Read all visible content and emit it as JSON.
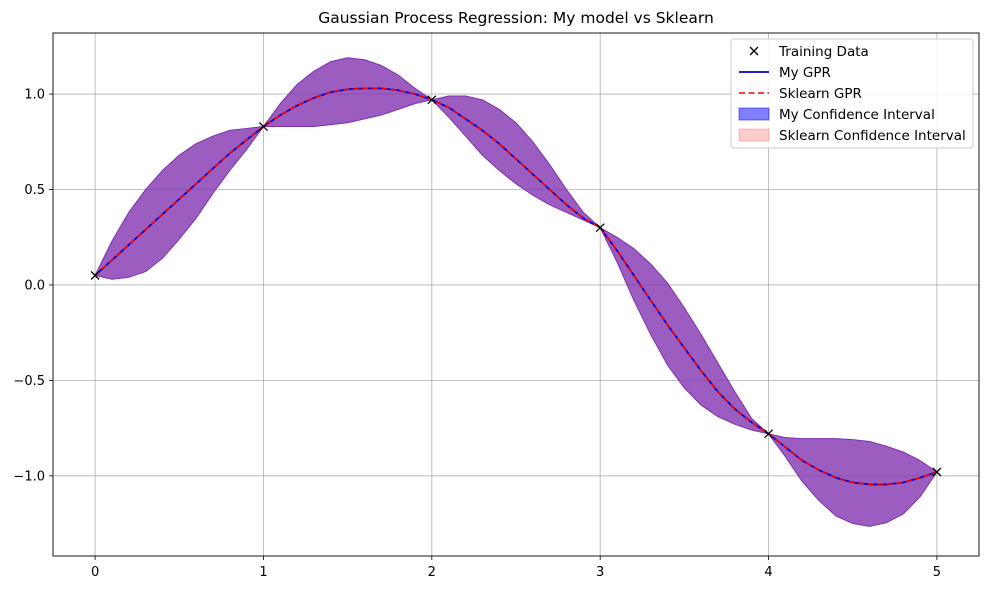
{
  "chart_data": {
    "type": "line",
    "title": "Gaussian Process Regression: My model vs Sklearn",
    "xlabel": "",
    "ylabel": "",
    "xlim": [
      -0.25,
      5.25
    ],
    "ylim": [
      -1.42,
      1.32
    ],
    "xticks": [
      0,
      1,
      2,
      3,
      4,
      5
    ],
    "xtick_labels": [
      "0",
      "1",
      "2",
      "3",
      "4",
      "5"
    ],
    "yticks": [
      -1.0,
      -0.5,
      0.0,
      0.5,
      1.0
    ],
    "ytick_labels": [
      "−1.0",
      "−0.5",
      "0.0",
      "0.5",
      "1.0"
    ],
    "grid": true,
    "legend_position": "top-right",
    "legend": [
      {
        "label": "Training Data",
        "kind": "marker-x",
        "color": "#000000"
      },
      {
        "label": "My GPR",
        "kind": "line",
        "color": "#0000cc"
      },
      {
        "label": "Sklearn GPR",
        "kind": "dashed",
        "color": "#ff0000"
      },
      {
        "label": "My Confidence Interval",
        "kind": "patch",
        "color": "#0000ff"
      },
      {
        "label": "Sklearn Confidence Interval",
        "kind": "patch",
        "color": "#ff0000"
      }
    ],
    "training_data": {
      "x": [
        0,
        1,
        2,
        3,
        4,
        5
      ],
      "y": [
        0.05,
        0.83,
        0.97,
        0.3,
        -0.78,
        -0.98
      ]
    },
    "series": [
      {
        "name": "My GPR",
        "x": [
          0,
          0.1,
          0.2,
          0.3,
          0.4,
          0.5,
          0.6,
          0.7,
          0.8,
          0.9,
          1.0,
          1.1,
          1.2,
          1.3,
          1.4,
          1.5,
          1.6,
          1.7,
          1.8,
          1.9,
          2.0,
          2.1,
          2.2,
          2.3,
          2.4,
          2.5,
          2.6,
          2.7,
          2.8,
          2.9,
          3.0,
          3.1,
          3.2,
          3.3,
          3.4,
          3.5,
          3.6,
          3.7,
          3.8,
          3.9,
          4.0,
          4.1,
          4.2,
          4.3,
          4.4,
          4.5,
          4.6,
          4.7,
          4.8,
          4.9,
          5.0
        ],
        "y": [
          0.05,
          0.13,
          0.21,
          0.29,
          0.37,
          0.45,
          0.53,
          0.61,
          0.69,
          0.76,
          0.83,
          0.89,
          0.94,
          0.98,
          1.01,
          1.025,
          1.03,
          1.03,
          1.02,
          1.0,
          0.97,
          0.93,
          0.87,
          0.81,
          0.74,
          0.66,
          0.58,
          0.5,
          0.42,
          0.35,
          0.3,
          0.18,
          0.05,
          -0.08,
          -0.21,
          -0.33,
          -0.45,
          -0.56,
          -0.65,
          -0.72,
          -0.78,
          -0.85,
          -0.92,
          -0.97,
          -1.01,
          -1.035,
          -1.045,
          -1.045,
          -1.035,
          -1.01,
          -0.98
        ]
      },
      {
        "name": "Sklearn GPR",
        "x": [
          0,
          0.1,
          0.2,
          0.3,
          0.4,
          0.5,
          0.6,
          0.7,
          0.8,
          0.9,
          1.0,
          1.1,
          1.2,
          1.3,
          1.4,
          1.5,
          1.6,
          1.7,
          1.8,
          1.9,
          2.0,
          2.1,
          2.2,
          2.3,
          2.4,
          2.5,
          2.6,
          2.7,
          2.8,
          2.9,
          3.0,
          3.1,
          3.2,
          3.3,
          3.4,
          3.5,
          3.6,
          3.7,
          3.8,
          3.9,
          4.0,
          4.1,
          4.2,
          4.3,
          4.4,
          4.5,
          4.6,
          4.7,
          4.8,
          4.9,
          5.0
        ],
        "y": [
          0.05,
          0.13,
          0.21,
          0.29,
          0.37,
          0.45,
          0.53,
          0.61,
          0.69,
          0.76,
          0.83,
          0.89,
          0.94,
          0.98,
          1.01,
          1.025,
          1.03,
          1.03,
          1.02,
          1.0,
          0.97,
          0.93,
          0.87,
          0.81,
          0.74,
          0.66,
          0.58,
          0.5,
          0.42,
          0.35,
          0.3,
          0.18,
          0.05,
          -0.08,
          -0.21,
          -0.33,
          -0.45,
          -0.56,
          -0.65,
          -0.72,
          -0.78,
          -0.85,
          -0.92,
          -0.97,
          -1.01,
          -1.035,
          -1.045,
          -1.045,
          -1.035,
          -1.01,
          -0.98
        ]
      }
    ],
    "confidence_band": {
      "x": [
        0,
        0.1,
        0.2,
        0.3,
        0.4,
        0.5,
        0.6,
        0.7,
        0.8,
        0.9,
        1.0,
        1.1,
        1.2,
        1.3,
        1.4,
        1.5,
        1.6,
        1.7,
        1.8,
        1.9,
        2.0,
        2.1,
        2.2,
        2.3,
        2.4,
        2.5,
        2.6,
        2.7,
        2.8,
        2.9,
        3.0,
        3.1,
        3.2,
        3.3,
        3.4,
        3.5,
        3.6,
        3.7,
        3.8,
        3.9,
        4.0,
        4.1,
        4.2,
        4.3,
        4.4,
        4.5,
        4.6,
        4.7,
        4.8,
        4.9,
        5.0
      ],
      "upper": [
        0.05,
        0.23,
        0.38,
        0.5,
        0.6,
        0.68,
        0.74,
        0.78,
        0.81,
        0.82,
        0.83,
        0.95,
        1.05,
        1.12,
        1.17,
        1.19,
        1.18,
        1.15,
        1.1,
        1.03,
        0.97,
        0.99,
        0.99,
        0.97,
        0.92,
        0.85,
        0.75,
        0.63,
        0.5,
        0.38,
        0.3,
        0.25,
        0.19,
        0.11,
        0.01,
        -0.12,
        -0.26,
        -0.41,
        -0.56,
        -0.7,
        -0.78,
        -0.8,
        -0.805,
        -0.805,
        -0.805,
        -0.81,
        -0.82,
        -0.845,
        -0.875,
        -0.92,
        -0.98
      ],
      "lower": [
        0.05,
        0.03,
        0.04,
        0.07,
        0.14,
        0.24,
        0.35,
        0.48,
        0.6,
        0.71,
        0.83,
        0.83,
        0.83,
        0.83,
        0.84,
        0.85,
        0.87,
        0.89,
        0.92,
        0.95,
        0.97,
        0.88,
        0.78,
        0.68,
        0.6,
        0.53,
        0.47,
        0.42,
        0.38,
        0.34,
        0.3,
        0.12,
        -0.08,
        -0.26,
        -0.42,
        -0.54,
        -0.63,
        -0.69,
        -0.73,
        -0.76,
        -0.78,
        -0.9,
        -1.03,
        -1.13,
        -1.21,
        -1.25,
        -1.265,
        -1.245,
        -1.2,
        -1.11,
        -0.98
      ]
    },
    "colors": {
      "ci_fill": "#7a3cc0",
      "ci_fill_opacity": 0.8,
      "ci_edge": "#7b32b4",
      "my_line": "#0000cc",
      "sklearn_line": "#ff0000",
      "grid": "#b0b0b0",
      "marker": "#000000"
    }
  }
}
